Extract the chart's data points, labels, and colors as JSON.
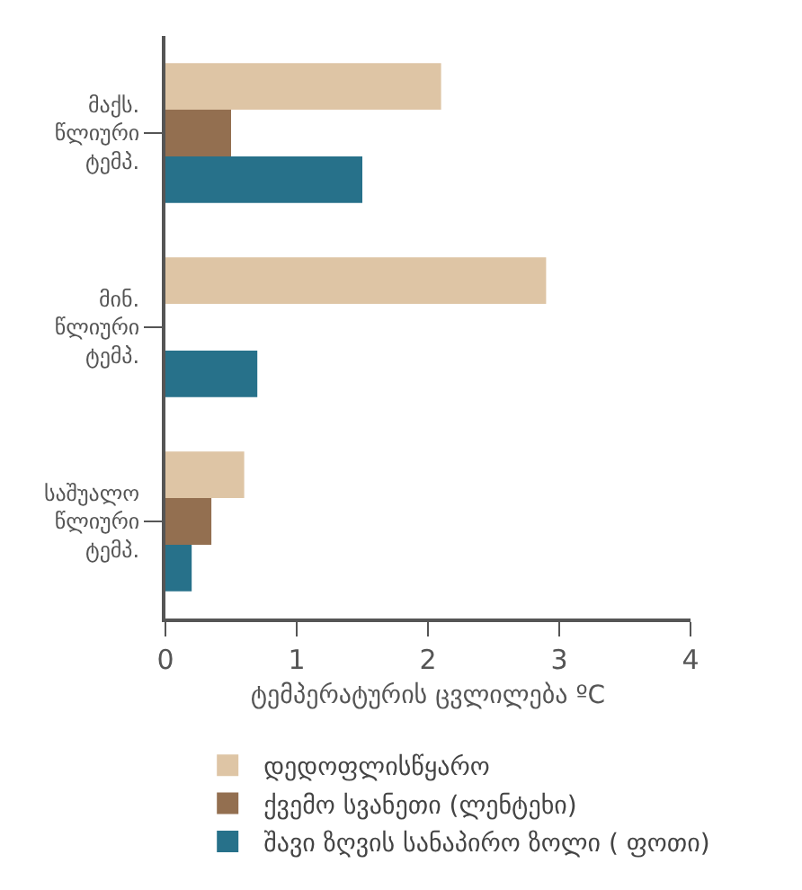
{
  "chart_data": {
    "type": "bar",
    "orientation": "horizontal",
    "categories": [
      "მაქს. წლიური ტემპ.",
      "მინ. წლიური ტემპ.",
      "საშუალო წლიური ტემპ."
    ],
    "series": [
      {
        "name": "დედოფლისწყარო",
        "color": "#dec5a5",
        "values": [
          2.1,
          2.9,
          0.6
        ]
      },
      {
        "name": "ქვემო სვანეთი (ლენტეხი)",
        "color": "#936f50",
        "values": [
          0.5,
          null,
          0.35
        ]
      },
      {
        "name": "შავი ზღვის სანაპირო ზოლი ( ფოთი)",
        "color": "#27718a",
        "values": [
          1.5,
          0.7,
          0.2
        ]
      }
    ],
    "xlabel": "ტემპერატურის ცვლილება ºC",
    "xlim": [
      0,
      4
    ],
    "xticks": [
      0,
      1,
      2,
      3,
      4
    ],
    "grid": false,
    "legend": "bottom"
  }
}
